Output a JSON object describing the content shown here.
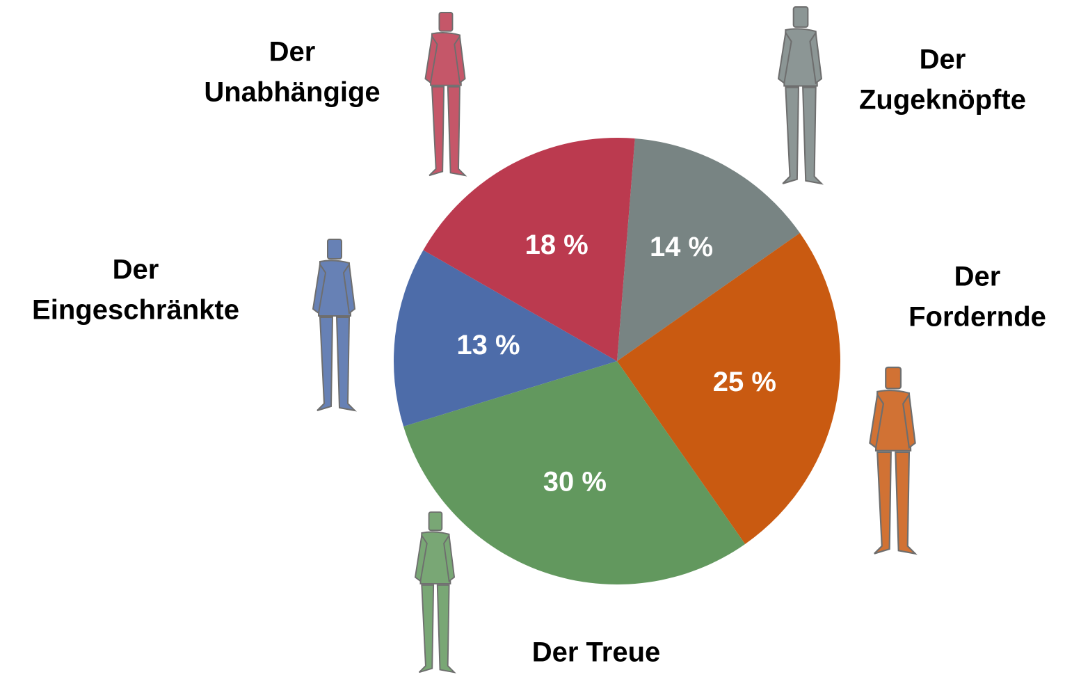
{
  "chart_data": {
    "type": "pie",
    "categories": [
      [
        "Der",
        "Zugeknöpfte"
      ],
      [
        "Der",
        "Fordernde"
      ],
      [
        "Der Treue"
      ],
      [
        "Der",
        "Eingeschränkte"
      ],
      [
        "Der",
        "Unabhängige"
      ]
    ],
    "values": [
      14,
      25,
      30,
      13,
      18
    ],
    "value_labels": [
      "14 %",
      "25 %",
      "30 %",
      "13 %",
      "18 %"
    ],
    "colors": [
      "#788483",
      "#c95a11",
      "#62985e",
      "#4d6ca9",
      "#bb3a4f"
    ]
  }
}
